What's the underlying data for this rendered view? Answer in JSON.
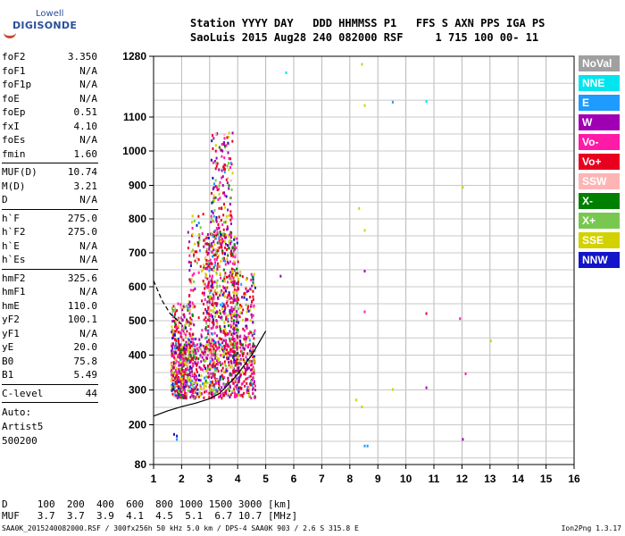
{
  "logo": {
    "line1": "Lowell",
    "line2": "DIGISONDE"
  },
  "header": {
    "line1": "Station YYYY DAY   DDD HHMMSS P1   FFS S AXN PPS IGA PS",
    "line2": "SaoLuis 2015 Aug28 240 082000 RSF     1 715 100 00- 11"
  },
  "params": [
    {
      "k": "foF2",
      "v": "3.350"
    },
    {
      "k": "foF1",
      "v": "N/A"
    },
    {
      "k": "foF1p",
      "v": "N/A"
    },
    {
      "k": "foE",
      "v": "N/A"
    },
    {
      "k": "foEp",
      "v": "0.51"
    },
    {
      "k": "fxI",
      "v": "4.10"
    },
    {
      "k": "foEs",
      "v": "N/A"
    },
    {
      "k": "fmin",
      "v": "1.60"
    },
    {
      "k": "MUF(D)",
      "v": "10.74"
    },
    {
      "k": "M(D)",
      "v": "3.21"
    },
    {
      "k": "D",
      "v": "N/A"
    },
    {
      "k": "h`F",
      "v": "275.0"
    },
    {
      "k": "h`F2",
      "v": "275.0"
    },
    {
      "k": "h`E",
      "v": "N/A"
    },
    {
      "k": "h`Es",
      "v": "N/A"
    },
    {
      "k": "hmF2",
      "v": "325.6"
    },
    {
      "k": "hmF1",
      "v": "N/A"
    },
    {
      "k": "hmE",
      "v": "110.0"
    },
    {
      "k": "yF2",
      "v": "100.1"
    },
    {
      "k": "yF1",
      "v": "N/A"
    },
    {
      "k": "yE",
      "v": "20.0"
    },
    {
      "k": "B0",
      "v": "75.8"
    },
    {
      "k": "B1",
      "v": "5.49"
    },
    {
      "k": "C-level",
      "v": "44"
    }
  ],
  "auto": {
    "l1": "Auto:",
    "l2": "Artist5",
    "l3": "500200"
  },
  "legend": [
    {
      "label": "NoVal",
      "color": "#a0a0a0"
    },
    {
      "label": "NNE",
      "color": "#00e5ee"
    },
    {
      "label": "E",
      "color": "#1e9bff"
    },
    {
      "label": "W",
      "color": "#a000b4"
    },
    {
      "label": "Vo-",
      "color": "#ff1aa8"
    },
    {
      "label": "Vo+",
      "color": "#e8001e"
    },
    {
      "label": "SSW",
      "color": "#ffb4b4"
    },
    {
      "label": "X-",
      "color": "#008000"
    },
    {
      "label": "X+",
      "color": "#78c850"
    },
    {
      "label": "SSE",
      "color": "#d2d200"
    },
    {
      "label": "NNW",
      "color": "#1414c8"
    }
  ],
  "bottom": {
    "line1": "D     100  200  400  600  800 1000 1500 3000 [km]",
    "line2": "MUF   3.7  3.7  3.9  4.1  4.5  5.1  6.7 10.7 [MHz]"
  },
  "footer": {
    "left": "SAA0K_2015240082000.RSF / 300fx256h 50 kHz 5.0 km / DPS-4 SAA0K 903 / 2.6 S 315.8 E",
    "right": "Ion2Png 1.3.17"
  },
  "chart_data": {
    "type": "scatter",
    "title": "",
    "xlabel": "",
    "ylabel": "",
    "xlim": [
      1,
      16
    ],
    "ylim": [
      80,
      1280
    ],
    "x_ticks": [
      "1",
      "2",
      "3",
      "4",
      "5",
      "6",
      "7",
      "8",
      "9",
      "10",
      "11",
      "12",
      "13",
      "14",
      "15",
      "16"
    ],
    "y_ticks": [
      "80",
      "200",
      "300",
      "400",
      "500",
      "600",
      "700",
      "800",
      "900",
      "1000",
      "1100",
      "1280"
    ],
    "grid": true,
    "legend_placement": "right",
    "series": [
      {
        "name": "NNE",
        "points": [
          [
            5.7,
            1235
          ],
          [
            10.7,
            1150
          ]
        ]
      },
      {
        "name": "E",
        "points": [
          [
            8.5,
            140
          ],
          [
            8.6,
            140
          ],
          [
            9.5,
            1148
          ],
          [
            1.8,
            160
          ]
        ]
      },
      {
        "name": "W",
        "points": [
          [
            5.5,
            635
          ],
          [
            10.7,
            310
          ],
          [
            12.0,
            160
          ],
          [
            8.5,
            650
          ]
        ]
      },
      {
        "name": "Vo-",
        "points": [
          [
            8.5,
            530
          ],
          [
            11.9,
            510
          ],
          [
            12.1,
            350
          ]
        ]
      },
      {
        "name": "Vo+",
        "points": [
          [
            10.7,
            525
          ]
        ]
      },
      {
        "name": "SSE",
        "points": [
          [
            8.4,
            1260
          ],
          [
            8.5,
            1138
          ],
          [
            8.3,
            835
          ],
          [
            8.5,
            770
          ],
          [
            8.2,
            275
          ],
          [
            8.4,
            255
          ],
          [
            9.5,
            305
          ],
          [
            12.0,
            898
          ],
          [
            13.0,
            445
          ]
        ]
      },
      {
        "name": "NNW",
        "points": [
          [
            1.7,
            175
          ],
          [
            1.8,
            170
          ]
        ]
      }
    ],
    "lines": [
      {
        "name": "profile",
        "points": [
          [
            1.0,
            225
          ],
          [
            1.5,
            240
          ],
          [
            2.0,
            252
          ],
          [
            2.5,
            262
          ],
          [
            3.0,
            275
          ],
          [
            3.35,
            290
          ],
          [
            3.6,
            310
          ],
          [
            4.0,
            345
          ],
          [
            4.5,
            400
          ],
          [
            5.0,
            470
          ]
        ]
      },
      {
        "name": "dashed",
        "points": [
          [
            1.0,
            618
          ],
          [
            1.3,
            560
          ],
          [
            1.6,
            520
          ],
          [
            2.0,
            490
          ]
        ]
      }
    ]
  }
}
